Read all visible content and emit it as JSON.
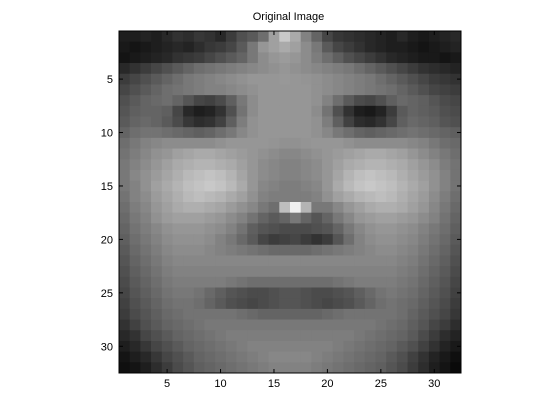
{
  "chart_data": {
    "type": "heatmap",
    "title": "Original Image",
    "xlabel": "",
    "ylabel": "",
    "colormap": "gray",
    "xlim": [
      0.5,
      32.5
    ],
    "ylim": [
      0.5,
      32.5
    ],
    "y_reversed": true,
    "grid": false,
    "xticks": [
      5,
      10,
      15,
      20,
      25,
      30
    ],
    "yticks": [
      5,
      10,
      15,
      20,
      25,
      30
    ],
    "xtick_labels": [
      "5",
      "10",
      "15",
      "20",
      "25",
      "30"
    ],
    "ytick_labels": [
      "5",
      "10",
      "15",
      "20",
      "25",
      "30"
    ],
    "rows": 32,
    "cols": 32,
    "value_range": [
      0,
      255
    ],
    "values": [
      [
        30,
        30,
        35,
        30,
        40,
        50,
        45,
        55,
        50,
        40,
        60,
        80,
        90,
        110,
        160,
        200,
        170,
        130,
        100,
        70,
        55,
        50,
        45,
        40,
        35,
        30,
        40,
        30,
        25,
        30,
        35,
        40
      ],
      [
        25,
        20,
        25,
        30,
        35,
        40,
        35,
        45,
        55,
        60,
        70,
        90,
        120,
        150,
        160,
        170,
        160,
        140,
        120,
        90,
        70,
        60,
        50,
        40,
        35,
        30,
        30,
        25,
        20,
        25,
        30,
        35
      ],
      [
        20,
        25,
        30,
        35,
        40,
        50,
        55,
        60,
        70,
        80,
        90,
        100,
        120,
        140,
        150,
        155,
        150,
        140,
        125,
        110,
        95,
        80,
        70,
        60,
        50,
        40,
        35,
        30,
        25,
        25,
        20,
        25
      ],
      [
        40,
        50,
        60,
        70,
        80,
        90,
        100,
        110,
        115,
        120,
        125,
        130,
        135,
        140,
        145,
        150,
        145,
        140,
        135,
        130,
        125,
        120,
        110,
        100,
        90,
        80,
        70,
        60,
        50,
        45,
        40,
        35
      ],
      [
        60,
        70,
        80,
        90,
        100,
        110,
        120,
        125,
        130,
        135,
        140,
        145,
        150,
        150,
        150,
        152,
        150,
        148,
        145,
        140,
        135,
        130,
        125,
        120,
        110,
        100,
        90,
        80,
        70,
        60,
        55,
        50
      ],
      [
        70,
        80,
        90,
        100,
        110,
        115,
        120,
        125,
        130,
        130,
        135,
        140,
        145,
        150,
        150,
        150,
        150,
        150,
        145,
        140,
        135,
        130,
        125,
        120,
        115,
        110,
        100,
        90,
        80,
        70,
        65,
        60
      ],
      [
        80,
        90,
        100,
        105,
        110,
        100,
        85,
        70,
        65,
        75,
        95,
        120,
        140,
        150,
        150,
        150,
        150,
        150,
        145,
        130,
        110,
        90,
        75,
        70,
        80,
        95,
        105,
        100,
        95,
        85,
        75,
        70
      ],
      [
        85,
        95,
        100,
        100,
        95,
        70,
        40,
        30,
        35,
        50,
        80,
        115,
        140,
        150,
        150,
        150,
        150,
        150,
        140,
        115,
        80,
        50,
        30,
        25,
        35,
        60,
        90,
        100,
        95,
        90,
        80,
        75
      ],
      [
        90,
        100,
        105,
        100,
        90,
        75,
        55,
        45,
        50,
        65,
        95,
        125,
        145,
        150,
        150,
        150,
        150,
        150,
        145,
        125,
        95,
        65,
        45,
        40,
        50,
        70,
        95,
        105,
        100,
        95,
        85,
        80
      ],
      [
        100,
        110,
        115,
        115,
        110,
        105,
        100,
        95,
        100,
        110,
        120,
        135,
        145,
        150,
        150,
        150,
        150,
        150,
        145,
        135,
        120,
        110,
        100,
        95,
        100,
        105,
        110,
        115,
        110,
        105,
        100,
        95
      ],
      [
        110,
        120,
        130,
        135,
        140,
        140,
        140,
        140,
        140,
        145,
        150,
        150,
        150,
        150,
        148,
        145,
        145,
        148,
        150,
        150,
        150,
        145,
        140,
        140,
        140,
        140,
        140,
        135,
        130,
        120,
        110,
        105
      ],
      [
        115,
        125,
        135,
        145,
        150,
        160,
        165,
        170,
        170,
        165,
        160,
        155,
        150,
        145,
        140,
        135,
        135,
        140,
        145,
        150,
        155,
        160,
        165,
        170,
        170,
        165,
        160,
        150,
        140,
        130,
        120,
        110
      ],
      [
        120,
        130,
        140,
        150,
        160,
        170,
        175,
        180,
        180,
        175,
        170,
        160,
        150,
        140,
        135,
        130,
        130,
        135,
        140,
        150,
        160,
        170,
        175,
        180,
        180,
        175,
        170,
        160,
        150,
        140,
        125,
        115
      ],
      [
        120,
        135,
        145,
        155,
        165,
        175,
        185,
        190,
        195,
        190,
        180,
        165,
        150,
        140,
        135,
        130,
        130,
        135,
        140,
        150,
        165,
        180,
        190,
        195,
        190,
        185,
        175,
        165,
        155,
        145,
        130,
        115
      ],
      [
        120,
        130,
        145,
        160,
        170,
        180,
        190,
        195,
        200,
        195,
        185,
        170,
        150,
        135,
        130,
        125,
        125,
        130,
        135,
        150,
        170,
        185,
        195,
        200,
        195,
        190,
        180,
        170,
        160,
        145,
        130,
        115
      ],
      [
        115,
        130,
        140,
        155,
        165,
        175,
        185,
        190,
        185,
        180,
        170,
        160,
        145,
        130,
        125,
        125,
        125,
        125,
        130,
        145,
        160,
        170,
        180,
        185,
        190,
        185,
        175,
        165,
        155,
        140,
        125,
        110
      ],
      [
        110,
        125,
        135,
        150,
        160,
        170,
        175,
        175,
        170,
        165,
        155,
        145,
        135,
        120,
        110,
        190,
        240,
        180,
        120,
        120,
        135,
        150,
        160,
        170,
        175,
        175,
        170,
        160,
        150,
        135,
        120,
        105
      ],
      [
        105,
        120,
        130,
        145,
        155,
        160,
        160,
        160,
        155,
        150,
        140,
        130,
        115,
        100,
        90,
        100,
        120,
        100,
        85,
        100,
        120,
        135,
        150,
        155,
        160,
        160,
        155,
        150,
        140,
        130,
        115,
        100
      ],
      [
        100,
        115,
        125,
        135,
        145,
        150,
        150,
        150,
        145,
        140,
        130,
        115,
        95,
        85,
        80,
        75,
        75,
        75,
        80,
        85,
        100,
        120,
        135,
        145,
        150,
        150,
        145,
        140,
        130,
        120,
        110,
        95
      ],
      [
        95,
        110,
        120,
        130,
        140,
        145,
        145,
        145,
        140,
        130,
        120,
        105,
        90,
        70,
        60,
        65,
        70,
        60,
        50,
        60,
        85,
        110,
        130,
        140,
        145,
        145,
        140,
        135,
        125,
        115,
        105,
        90
      ],
      [
        90,
        105,
        115,
        125,
        135,
        140,
        140,
        140,
        135,
        130,
        125,
        120,
        115,
        110,
        105,
        105,
        105,
        105,
        110,
        115,
        120,
        125,
        130,
        135,
        140,
        140,
        135,
        130,
        120,
        110,
        100,
        85
      ],
      [
        85,
        100,
        110,
        120,
        130,
        135,
        135,
        135,
        135,
        135,
        135,
        135,
        135,
        135,
        135,
        135,
        135,
        135,
        135,
        135,
        135,
        135,
        135,
        135,
        135,
        135,
        130,
        125,
        115,
        105,
        95,
        80
      ],
      [
        80,
        95,
        105,
        115,
        125,
        130,
        130,
        130,
        130,
        130,
        130,
        130,
        130,
        130,
        130,
        130,
        130,
        130,
        130,
        130,
        130,
        130,
        130,
        130,
        130,
        130,
        125,
        120,
        110,
        100,
        90,
        75
      ],
      [
        75,
        90,
        100,
        110,
        120,
        125,
        125,
        125,
        125,
        125,
        120,
        115,
        110,
        110,
        110,
        110,
        110,
        110,
        110,
        110,
        115,
        120,
        125,
        125,
        125,
        125,
        120,
        115,
        105,
        95,
        85,
        70
      ],
      [
        70,
        85,
        95,
        105,
        115,
        120,
        120,
        115,
        105,
        95,
        85,
        80,
        75,
        75,
        80,
        85,
        85,
        80,
        75,
        75,
        80,
        85,
        95,
        105,
        115,
        120,
        115,
        110,
        100,
        90,
        80,
        65
      ],
      [
        65,
        80,
        90,
        100,
        110,
        115,
        115,
        110,
        100,
        90,
        80,
        75,
        70,
        75,
        80,
        85,
        85,
        80,
        75,
        70,
        75,
        80,
        90,
        100,
        110,
        115,
        110,
        105,
        95,
        85,
        75,
        60
      ],
      [
        60,
        75,
        85,
        95,
        105,
        110,
        115,
        115,
        115,
        115,
        115,
        110,
        105,
        100,
        100,
        100,
        100,
        100,
        100,
        105,
        110,
        115,
        115,
        115,
        115,
        115,
        110,
        100,
        90,
        80,
        70,
        55
      ],
      [
        50,
        65,
        80,
        90,
        100,
        105,
        110,
        115,
        120,
        120,
        120,
        120,
        120,
        120,
        120,
        120,
        120,
        120,
        120,
        120,
        120,
        120,
        120,
        120,
        115,
        110,
        105,
        95,
        85,
        70,
        60,
        45
      ],
      [
        40,
        50,
        70,
        80,
        90,
        100,
        105,
        110,
        115,
        120,
        125,
        125,
        125,
        125,
        125,
        125,
        125,
        125,
        125,
        125,
        125,
        125,
        120,
        115,
        110,
        105,
        100,
        90,
        75,
        60,
        45,
        35
      ],
      [
        30,
        40,
        55,
        70,
        80,
        90,
        100,
        105,
        110,
        115,
        120,
        125,
        130,
        130,
        130,
        130,
        130,
        130,
        130,
        130,
        125,
        120,
        115,
        110,
        105,
        100,
        90,
        80,
        65,
        50,
        35,
        25
      ],
      [
        20,
        30,
        40,
        55,
        70,
        80,
        90,
        100,
        105,
        110,
        115,
        120,
        125,
        130,
        135,
        135,
        135,
        135,
        130,
        125,
        120,
        115,
        110,
        105,
        100,
        90,
        80,
        65,
        50,
        35,
        25,
        15
      ],
      [
        15,
        20,
        30,
        45,
        60,
        75,
        85,
        95,
        100,
        105,
        110,
        115,
        120,
        125,
        130,
        130,
        130,
        130,
        125,
        120,
        115,
        110,
        105,
        100,
        95,
        85,
        75,
        60,
        45,
        30,
        20,
        10
      ]
    ]
  }
}
